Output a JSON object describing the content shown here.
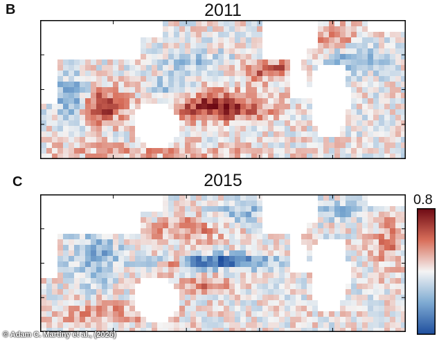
{
  "figure": {
    "credit": "© Adam C. Martiny et al., (2026)",
    "colorbar_max_label": "0.8",
    "colors": {
      "low": "#1f4e9e",
      "mid": "#f4f4f4",
      "high": "#6e0a14",
      "land": "#ffffff",
      "frame": "#000000"
    }
  },
  "chart_data": [
    {
      "type": "heatmap",
      "panel_letter": "B",
      "title": "2011",
      "xlabel": "",
      "ylabel": "",
      "grid": false,
      "value_max": 0.8,
      "features": [
        {
          "pattern": "tropical Pacific warm anomaly tongue (red)",
          "sign": "positive"
        },
        {
          "pattern": "Indian Ocean subtropical red patch",
          "sign": "positive"
        },
        {
          "pattern": "North Pacific red band",
          "sign": "positive"
        },
        {
          "pattern": "West Pacific / Indian coast blue",
          "sign": "negative"
        },
        {
          "pattern": "North Atlantic blue band",
          "sign": "negative"
        }
      ]
    },
    {
      "type": "heatmap",
      "panel_letter": "C",
      "title": "2015",
      "xlabel": "",
      "ylabel": "",
      "grid": false,
      "value_max": 0.8,
      "colorbar": {
        "position": "right",
        "max_label": "0.8"
      },
      "features": [
        {
          "pattern": "equatorial Pacific strong blue band",
          "sign": "negative"
        },
        {
          "pattern": "Indian Ocean blue",
          "sign": "negative"
        },
        {
          "pattern": "Southwest Pacific red diagonal",
          "sign": "positive"
        },
        {
          "pattern": "Atlantic mixed red/blue",
          "sign": "mixed"
        }
      ]
    }
  ]
}
